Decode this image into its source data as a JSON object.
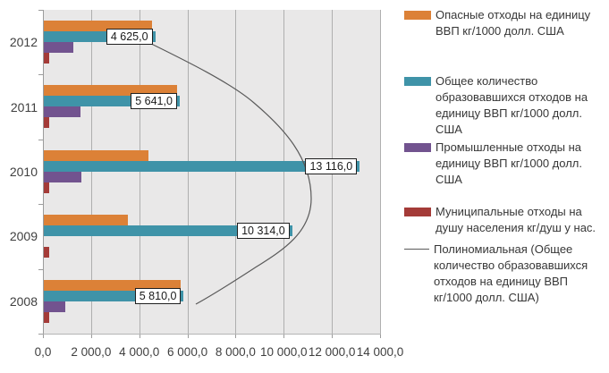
{
  "chart_data": {
    "type": "bar",
    "orientation": "horizontal",
    "categories": [
      "2012",
      "2011",
      "2010",
      "2009",
      "2008"
    ],
    "series": [
      {
        "name": "Опасные отходы на единицу ВВП кг/1000 долл. США",
        "color": "#DC8137",
        "values": [
          4500,
          5550,
          4350,
          3500,
          5700
        ]
      },
      {
        "name": "Общее количество образовавшихся отходов на единицу ВВП кг/1000 долл. США",
        "color": "#3F93A8",
        "values": [
          4625,
          5641,
          13116,
          10314,
          5810
        ],
        "data_labels": [
          "4 625,0",
          "5 641,0",
          "13 116,0",
          "10 314,0",
          "5 810,0"
        ]
      },
      {
        "name": "Промышленные отходы на единицу ВВП кг/1000 долл. США",
        "color": "#72538F",
        "values": [
          1230,
          1530,
          1560,
          0,
          900
        ]
      },
      {
        "name": "Муниципальные отходы на душу населения кг/душ у нас.",
        "color": "#A43B38",
        "values": [
          220,
          220,
          220,
          220,
          220
        ]
      }
    ],
    "trendline": {
      "name": "Полиномиальная (Общее количество образовавшихся отходов на единицу ВВП кг/1000 долл. США)",
      "color": "#5A5A5A"
    },
    "xlim": [
      0,
      14000
    ],
    "x_tick_labels": [
      "0,0",
      "2 000,0",
      "4 000,0",
      "6 000,0",
      "8 000,0",
      "10 000,0",
      "12 000,0",
      "14 000,0"
    ],
    "grid": true,
    "legend_position": "right",
    "plot_bg": "#E9E8E8"
  },
  "legend": {
    "items": [
      {
        "swatch": "bar",
        "color": "#DC8137",
        "label": "Опасные отходы на единицу ВВП кг/1000 долл. США"
      },
      {
        "swatch": "bar",
        "color": "#3F93A8",
        "label": "Общее количество образовавшихся отходов на единицу ВВП  кг/1000 долл. США"
      },
      {
        "swatch": "bar",
        "color": "#72538F",
        "label": "Промышленные отходы на единицу ВВП  кг/1000 долл. США"
      },
      {
        "swatch": "bar",
        "color": "#A43B38",
        "label": "Муниципальные отходы на душу населения  кг/душ у нас."
      },
      {
        "swatch": "line",
        "color": "#5A5A5A",
        "label": "Полиномиальная (Общее количество образовавшихся отходов на единицу ВВП кг/1000 долл. США)"
      }
    ]
  },
  "colors": {
    "gridline": "#AFAFAF",
    "axis": "#9C9C9C",
    "text": "#3F3F3F",
    "label_box_bg": "#FFFFFF",
    "label_box_border": "#1F1F1F"
  }
}
